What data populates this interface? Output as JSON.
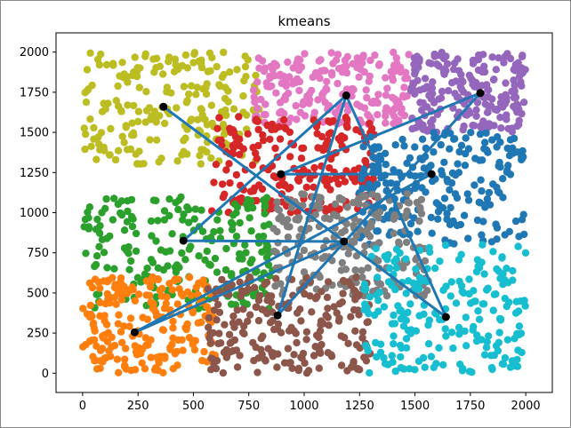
{
  "chart_data": {
    "type": "scatter",
    "title": "kmeans",
    "xlabel": "",
    "ylabel": "",
    "xlim": [
      -120,
      2120
    ],
    "ylim": [
      -120,
      2120
    ],
    "xticks": [
      0,
      250,
      500,
      750,
      1000,
      1250,
      1500,
      1750,
      2000
    ],
    "yticks": [
      0,
      250,
      500,
      750,
      1000,
      1250,
      1500,
      1750,
      2000
    ],
    "x_tick_labels": [
      "0",
      "250",
      "500",
      "750",
      "1000",
      "1250",
      "1500",
      "1750",
      "2000"
    ],
    "y_tick_labels": [
      "0",
      "250",
      "500",
      "750",
      "1000",
      "1250",
      "1500",
      "1750",
      "2000"
    ],
    "grid": false,
    "clusters": [
      {
        "color": "#bcbd22",
        "centroid": [
          365,
          1660
        ],
        "x_range": [
          0,
          800
        ],
        "y_range": [
          1300,
          2000
        ]
      },
      {
        "color": "#e377c2",
        "centroid": [
          1190,
          1730
        ],
        "x_range": [
          770,
          1480
        ],
        "y_range": [
          1550,
          2000
        ]
      },
      {
        "color": "#9467bd",
        "centroid": [
          1795,
          1745
        ],
        "x_range": [
          1480,
          2000
        ],
        "y_range": [
          1500,
          2000
        ]
      },
      {
        "color": "#d62728",
        "centroid": [
          895,
          1240
        ],
        "x_range": [
          580,
          1320
        ],
        "y_range": [
          1000,
          1600
        ]
      },
      {
        "color": "#1f77b4",
        "centroid": [
          1575,
          1240
        ],
        "x_range": [
          1250,
          2000
        ],
        "y_range": [
          800,
          1500
        ]
      },
      {
        "color": "#2ca02c",
        "centroid": [
          455,
          825
        ],
        "x_range": [
          0,
          860
        ],
        "y_range": [
          400,
          1100
        ]
      },
      {
        "color": "#7f7f7f",
        "centroid": [
          1180,
          820
        ],
        "x_range": [
          860,
          1560
        ],
        "y_range": [
          480,
          1120
        ]
      },
      {
        "color": "#ff7f0e",
        "centroid": [
          235,
          255
        ],
        "x_range": [
          0,
          600
        ],
        "y_range": [
          0,
          600
        ]
      },
      {
        "color": "#8c564b",
        "centroid": [
          880,
          360
        ],
        "x_range": [
          560,
          1300
        ],
        "y_range": [
          0,
          600
        ]
      },
      {
        "color": "#17becf",
        "centroid": [
          1640,
          350
        ],
        "x_range": [
          1270,
          2000
        ],
        "y_range": [
          0,
          800
        ]
      }
    ],
    "centroid_path": [
      [
        365,
        1660
      ],
      [
        1640,
        350
      ],
      [
        1190,
        1730
      ],
      [
        880,
        360
      ],
      [
        1795,
        1745
      ],
      [
        895,
        1240
      ],
      [
        1575,
        1240
      ],
      [
        235,
        255
      ],
      [
        1180,
        820
      ],
      [
        455,
        825
      ],
      [
        1190,
        1730
      ]
    ],
    "points_per_cluster": 220,
    "line_color": "#1f77b4",
    "centroid_color": "#000000"
  }
}
